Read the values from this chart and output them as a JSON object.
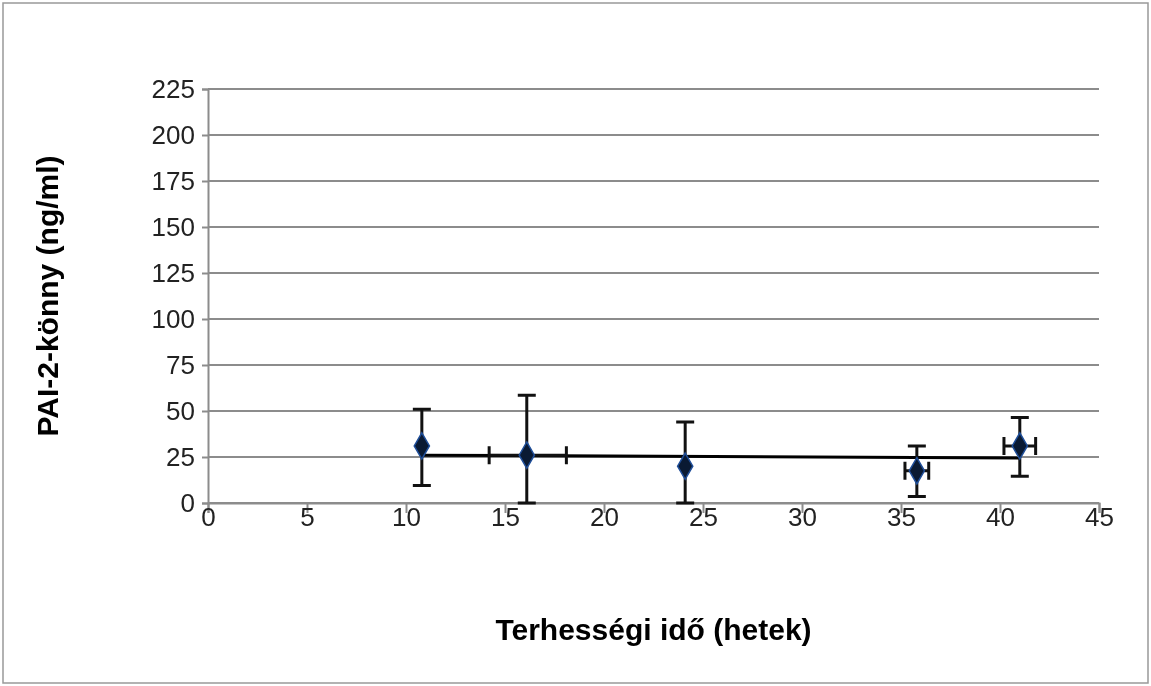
{
  "chart_data": {
    "type": "scatter",
    "xlabel": "Terhességi idő (hetek)",
    "ylabel": "PAI-2-könny (ng/ml)",
    "xlim": [
      0,
      45
    ],
    "xticks": [
      0,
      5,
      10,
      15,
      20,
      25,
      30,
      35,
      40,
      45
    ],
    "ylim": [
      0,
      225
    ],
    "yticks": [
      0,
      25,
      50,
      75,
      100,
      125,
      150,
      175,
      200,
      225
    ],
    "grid": "y",
    "series": [
      {
        "color": "#0a1a33",
        "marker": "diamond",
        "x": [
          10.8,
          16.1,
          24.1,
          35.8,
          41.0
        ],
        "values": [
          31,
          26,
          20,
          17.5,
          31
        ],
        "errors": [
          [
            9.5,
            51
          ],
          [
            0,
            58.5
          ],
          [
            0,
            44
          ],
          [
            3.5,
            31
          ],
          [
            14.5,
            46.5
          ]
        ],
        "xerrors": [
          null,
          [
            14.2,
            18.1
          ],
          null,
          [
            35.2,
            36.4
          ],
          [
            40.2,
            41.8
          ]
        ]
      },
      {
        "type": "line",
        "color": "#000000",
        "marker": "none",
        "x": [
          10.8,
          41.0
        ],
        "values": [
          26,
          24.5
        ]
      }
    ]
  }
}
